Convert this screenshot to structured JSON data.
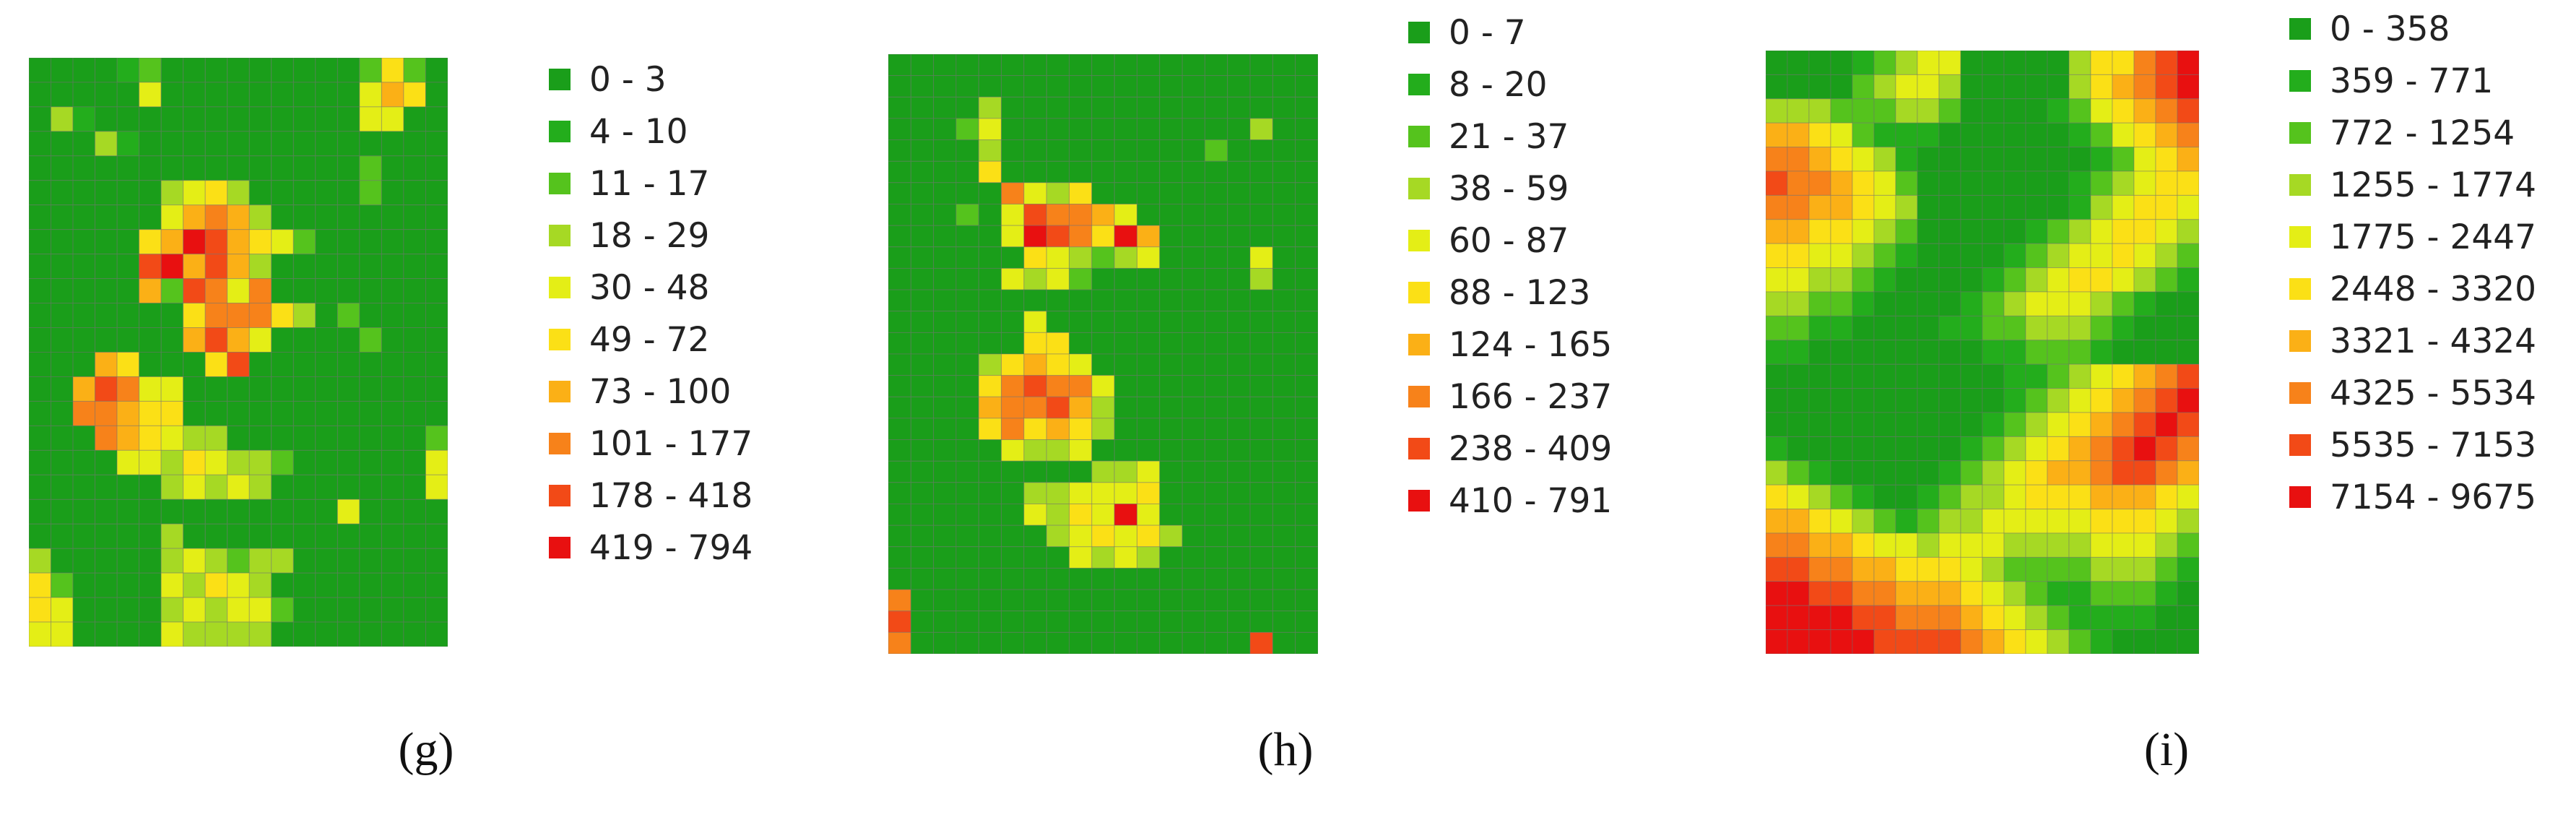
{
  "palette": [
    "#1a9e1a",
    "#23ad1c",
    "#55c31d",
    "#a6d924",
    "#e4ee16",
    "#fbe016",
    "#fbb016",
    "#f7821a",
    "#f24a17",
    "#e81010"
  ],
  "chart_data": [
    {
      "type": "heatmap",
      "caption": "(g)",
      "legend": [
        "0 - 3",
        "4 - 10",
        "11 - 17",
        "18 - 29",
        "30 - 48",
        "49 - 72",
        "73 - 100",
        "101 - 177",
        "178 - 418",
        "419 - 794"
      ],
      "rows": [
        "0000120000000002520",
        "0000040000000004650",
        "0310000000000004400",
        "0003100000000000000",
        "0000000000000002000",
        "0000003453000002000",
        "0000004676300000000",
        "0000056986542000000",
        "0000089686300000000",
        "0000062874700000000",
        "0000000577753020000",
        "0000000686400002000",
        "0006500058000000000",
        "0068744000000000000",
        "0077655000000000000",
        "0007654330000000002",
        "0000443543320000004",
        "0000003434300000004",
        "0000000000000040000",
        "0000003000000000000",
        "3000003432330000000",
        "5200004354300000000",
        "5400003434420000000",
        "4400004333300000000"
      ]
    },
    {
      "type": "heatmap",
      "caption": "(h)",
      "legend": [
        "0 - 7",
        "8 - 20",
        "21 - 37",
        "38 - 59",
        "60 - 87",
        "88 - 123",
        "124 - 165",
        "166 - 237",
        "238 - 409",
        "410 - 791"
      ],
      "rows": [
        "0000000000000000000",
        "0000000000000000000",
        "0000300000000000000",
        "0002400000000000300",
        "0000300000000020000",
        "0000500000000000000",
        "0000074350000000000",
        "0002048776400000000",
        "0000049875960000000",
        "0000005432340000400",
        "0000043420000000300",
        "0000000000000000000",
        "0000004000000000000",
        "0000005500000000000",
        "0000356540000000000",
        "0000578774000000000",
        "0000677863000000000",
        "0000575653000000000",
        "0000043340000000000",
        "0000000003340000000",
        "0000003344450000000",
        "0000004354940000000",
        "0000000345453000000",
        "0000000043430000000",
        "0000000000000000000",
        "7000000000000000000",
        "8000000000000000000",
        "7000000000000000800"
      ]
    },
    {
      "type": "heatmap",
      "caption": "(i)",
      "legend": [
        "0 - 358",
        "359 - 771",
        "772 - 1254",
        "1255 - 1774",
        "1775 - 2447",
        "2448 - 3320",
        "3321 - 4324",
        "4325 - 5534",
        "5535 - 7153",
        "7154 - 9675"
      ],
      "rows": [
        "00001234400000355789",
        "00002344300000356789",
        "33322233200001245678",
        "66542111000000124567",
        "77654310000000012456",
        "87765420000000123455",
        "77665430000000134554",
        "66554320000012345543",
        "55443210000123445432",
        "44332100001234554321",
        "33221000012344432100",
        "22110000112233321000",
        "11000000001122210000",
        "00000000000112345678",
        "00000000000123456789",
        "00000000001234567898",
        "10000000012345678987",
        "32100000123456678876",
        "54321001233455566654",
        "66543212334444455543",
        "77665443444333344432",
        "88776655543222233321",
        "99887766654321122210",
        "99998877765432111100",
        "99999888876543210000"
      ]
    }
  ]
}
